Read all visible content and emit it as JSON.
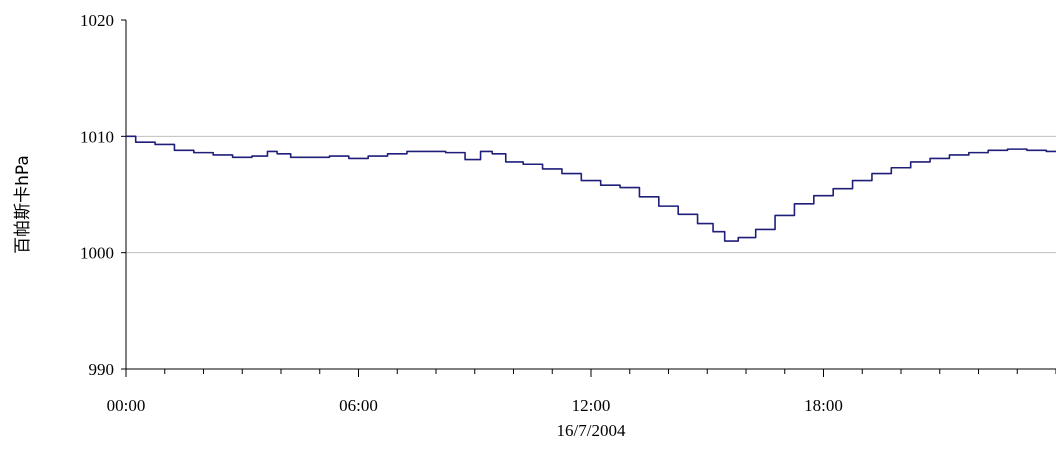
{
  "chart_data": {
    "type": "line",
    "title": "",
    "ylabel": "百帕斯卡hPa",
    "xlabel": "16/7/2004",
    "ylim": [
      990,
      1020
    ],
    "xlim": [
      0,
      24
    ],
    "y_ticks": [
      990,
      1000,
      1010,
      1020
    ],
    "y_tick_labels": [
      "990",
      "1000",
      "1010",
      "1020"
    ],
    "x_ticks": [
      0,
      6,
      12,
      18
    ],
    "x_tick_labels": [
      "00:00",
      "06:00",
      "12:00",
      "18:00"
    ],
    "gridlines": [
      1000,
      1010
    ],
    "grid": true,
    "legend": "none",
    "line_color": "#1f1f7a",
    "grid_color": "#c0c0c0",
    "series": [
      {
        "x": [
          0,
          0.5,
          1,
          1.5,
          2,
          2.5,
          3,
          3.5,
          3.8,
          4,
          4.5,
          5,
          5.5,
          6,
          6.5,
          7,
          7.5,
          8,
          8.5,
          9,
          9.3,
          9.6,
          10,
          10.5,
          11,
          11.5,
          12,
          12.5,
          13,
          13.5,
          14,
          14.5,
          15,
          15.3,
          15.6,
          16,
          16.5,
          17,
          17.5,
          18,
          18.5,
          19,
          19.5,
          20,
          20.5,
          21,
          21.5,
          22,
          22.5,
          23,
          23.5,
          24
        ],
        "y": [
          1010.0,
          1009.5,
          1009.3,
          1008.8,
          1008.6,
          1008.4,
          1008.2,
          1008.3,
          1008.7,
          1008.5,
          1008.2,
          1008.2,
          1008.3,
          1008.1,
          1008.3,
          1008.5,
          1008.7,
          1008.7,
          1008.6,
          1008.0,
          1008.7,
          1008.5,
          1007.8,
          1007.6,
          1007.2,
          1006.8,
          1006.2,
          1005.8,
          1005.6,
          1004.8,
          1004.0,
          1003.3,
          1002.5,
          1001.8,
          1001.0,
          1001.3,
          1002.0,
          1003.2,
          1004.2,
          1004.9,
          1005.5,
          1006.2,
          1006.8,
          1007.3,
          1007.8,
          1008.1,
          1008.4,
          1008.6,
          1008.8,
          1008.9,
          1008.8,
          1008.7
        ]
      }
    ]
  }
}
